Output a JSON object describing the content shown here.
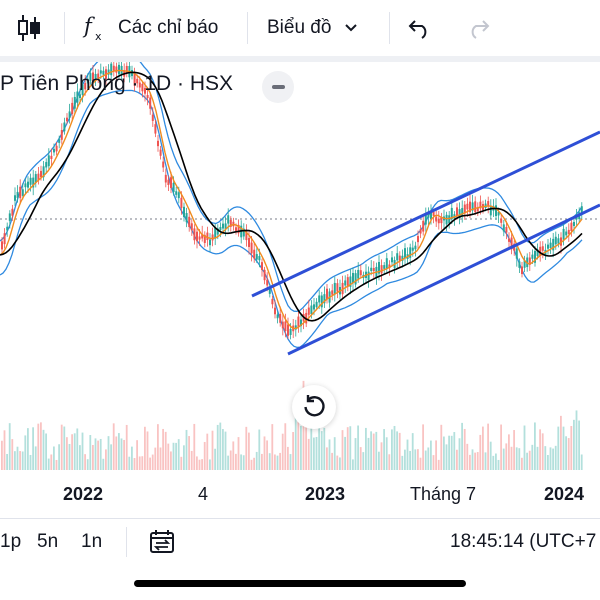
{
  "toolbar": {
    "indicators_label": "Các chỉ báo",
    "chart_type_label": "Biểu đồ"
  },
  "symbol": {
    "title": "P Tiên Phong · 1D · HSX"
  },
  "time_axis": {
    "labels": [
      {
        "text": "2022",
        "bold": true
      },
      {
        "text": "4",
        "bold": false
      },
      {
        "text": "2023",
        "bold": true
      },
      {
        "text": "Tháng 7",
        "bold": false
      },
      {
        "text": "2024",
        "bold": true
      }
    ]
  },
  "bottom_bar": {
    "ranges": [
      "1p",
      "5n",
      "1n"
    ],
    "clock": "18:45:14 (UTC+7"
  },
  "colors": {
    "up": "#26a69a",
    "down": "#ef5350",
    "channel": "#2e4fd6",
    "bollinger": "#2f8ae0",
    "ma_black": "#000000",
    "ma_orange": "#f08c20"
  }
}
